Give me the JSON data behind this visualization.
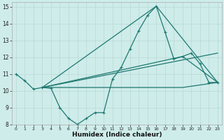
{
  "xlabel": "Humidex (Indice chaleur)",
  "xlim": [
    -0.5,
    23.5
  ],
  "ylim": [
    8,
    15.3
  ],
  "yticks": [
    8,
    9,
    10,
    11,
    12,
    13,
    14,
    15
  ],
  "xticks": [
    0,
    1,
    2,
    3,
    4,
    5,
    6,
    7,
    8,
    9,
    10,
    11,
    12,
    13,
    14,
    15,
    16,
    17,
    18,
    19,
    20,
    21,
    22,
    23
  ],
  "bg_color": "#ceecea",
  "grid_color": "#b8d8d5",
  "line_color": "#1e7870",
  "main_x": [
    0,
    1,
    2,
    3,
    4,
    5,
    6,
    7,
    8,
    9,
    10,
    11,
    12,
    13,
    14,
    15,
    16,
    17,
    18,
    19,
    20,
    21,
    22,
    23
  ],
  "main_y": [
    11.0,
    10.6,
    10.1,
    10.2,
    10.15,
    9.0,
    8.35,
    8.0,
    8.35,
    8.7,
    8.7,
    10.7,
    11.4,
    12.5,
    13.6,
    14.5,
    15.05,
    13.5,
    11.9,
    12.05,
    12.25,
    11.6,
    10.5,
    10.5
  ],
  "line2_x": [
    3,
    10,
    19,
    23
  ],
  "line2_y": [
    10.2,
    10.2,
    10.2,
    10.5
  ],
  "line3_x": [
    3,
    16,
    23
  ],
  "line3_y": [
    10.2,
    15.05,
    10.5
  ],
  "line4_x": [
    3,
    19,
    23
  ],
  "line4_y": [
    10.2,
    12.05,
    10.5
  ],
  "line5_x": [
    3,
    23
  ],
  "line5_y": [
    10.2,
    12.25
  ]
}
